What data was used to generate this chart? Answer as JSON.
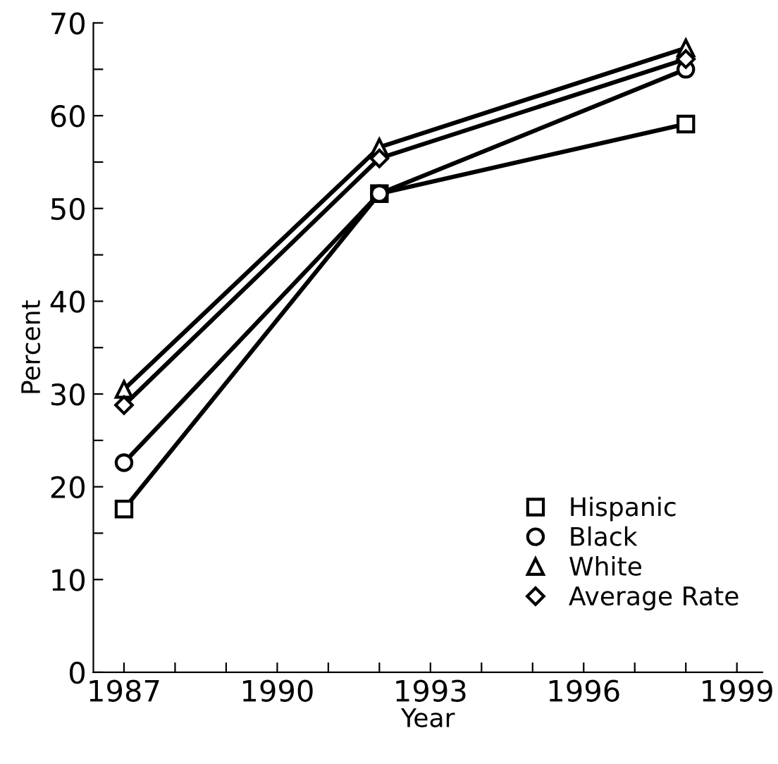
{
  "chart_data": {
    "type": "line",
    "xlabel": "Year",
    "ylabel": "Percent",
    "x": [
      1987,
      1992,
      1998
    ],
    "series": [
      {
        "name": "Hispanic",
        "color": "#000000",
        "marker": "square",
        "values": [
          17.6,
          51.6,
          59.1
        ]
      },
      {
        "name": "Black",
        "color": "#000000",
        "marker": "circle",
        "values": [
          22.6,
          51.6,
          65
        ]
      },
      {
        "name": "White",
        "color": "#000000",
        "marker": "triangle",
        "values": [
          30.5,
          56.6,
          67.3
        ]
      },
      {
        "name": "Average Rate",
        "color": "#000000",
        "marker": "diamond",
        "values": [
          28.8,
          55.4,
          66.1
        ]
      }
    ],
    "xlim": [
      1986.4,
      1999.5
    ],
    "xticks": [
      1987,
      {
        "value": 1988,
        "label": null
      },
      {
        "value": 1989,
        "label": null
      },
      1990,
      {
        "value": 1991,
        "label": null
      },
      {
        "value": 1992,
        "label": null
      },
      1993,
      {
        "value": 1994,
        "label": null
      },
      {
        "value": 1995,
        "label": null
      },
      1996,
      {
        "value": 1997,
        "label": null
      },
      {
        "value": 1998,
        "label": null
      },
      1999
    ],
    "ylim": [
      0,
      70
    ],
    "yticks": [
      0,
      10,
      {
        "value": 15,
        "label": null
      },
      20,
      {
        "value": 25,
        "label": null
      },
      30,
      {
        "value": 35,
        "label": null
      },
      40,
      {
        "value": 45,
        "label": null
      },
      50,
      {
        "value": 55,
        "label": null
      },
      60,
      {
        "value": 65,
        "label": null
      },
      70
    ],
    "line_style": "solid",
    "grid": false,
    "legend": "bottom right"
  }
}
